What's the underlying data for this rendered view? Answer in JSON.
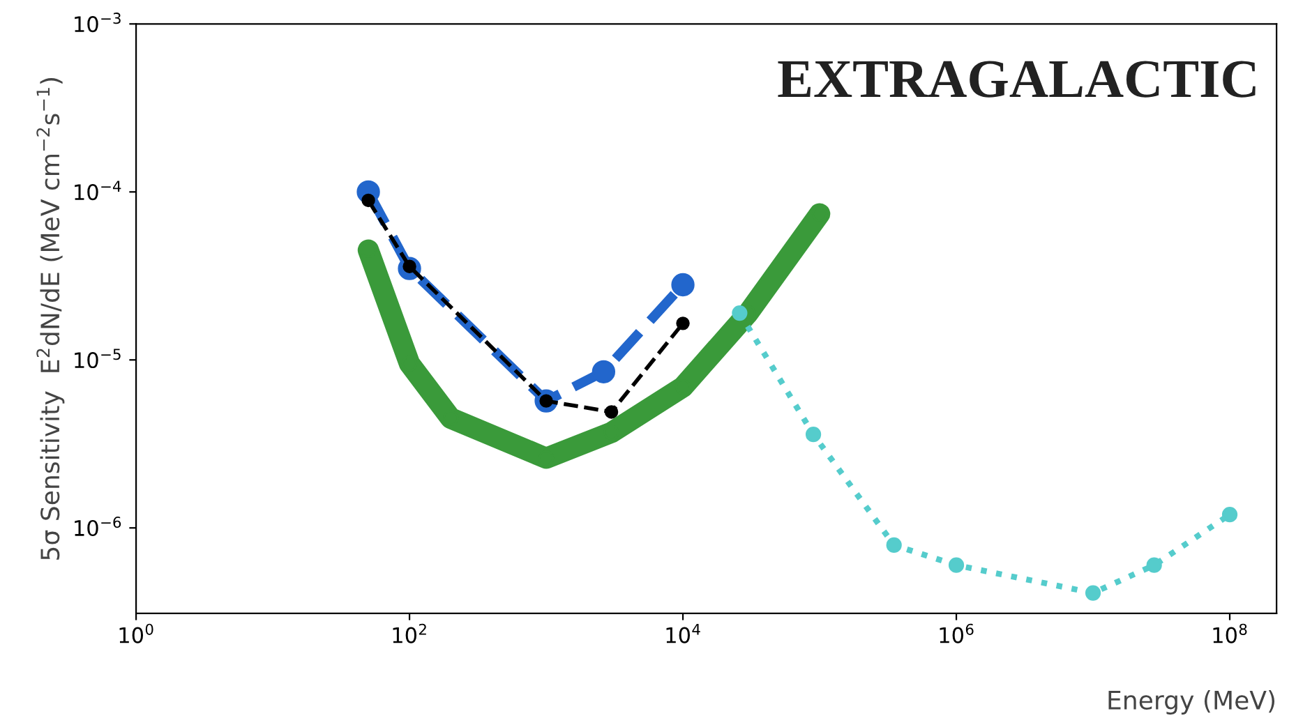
{
  "chart_data": {
    "type": "line",
    "annotations": [
      "EXTRAGALACTIC"
    ],
    "xlabel": "Energy (MeV)",
    "ylabel": "5σ Sensitivity  E$^{2}$dN/dE (MeV cm$^{−2}$s$^{−1}$)",
    "log": "xy",
    "xlim": [
      1,
      220000000
    ],
    "ylim": [
      3.1e-07,
      0.001
    ],
    "xticks": [
      {
        "value": 1,
        "label": "10$^{0}$"
      },
      {
        "value": 100,
        "label": "10$^{2}$"
      },
      {
        "value": 10000,
        "label": "10$^{4}$"
      },
      {
        "value": 1000000,
        "label": "10$^{6}$"
      },
      {
        "value": 100000000,
        "label": "10$^{8}$"
      }
    ],
    "yticks": [
      {
        "value": 1e-06,
        "label": "10$^{−6}$"
      },
      {
        "value": 1e-05,
        "label": "10$^{−5}$"
      },
      {
        "value": 0.0001,
        "label": "10$^{−4}$"
      },
      {
        "value": 0.001,
        "label": "10$^{−3}$"
      }
    ],
    "grid": false,
    "marker": "circle",
    "series": [
      {
        "color": "#3a9a3a",
        "line_style": "solid",
        "x": [
          50,
          100,
          200,
          1000,
          3000,
          10000,
          30000,
          100000
        ],
        "values": [
          4.5e-05,
          9.5e-06,
          4.5e-06,
          2.6e-06,
          3.7e-06,
          6.9e-06,
          1.9e-05,
          7.4e-05
        ]
      },
      {
        "color": "#2266cc",
        "line_style": "dashed",
        "x": [
          50,
          100,
          1000,
          2630,
          10000
        ],
        "values": [
          0.0001,
          3.5e-05,
          5.7e-06,
          8.5e-06,
          2.8e-05
        ]
      },
      {
        "color": "#000000",
        "line_style": "dashed",
        "x": [
          50,
          100,
          1000,
          3000,
          10000
        ],
        "values": [
          8.9e-05,
          3.6e-05,
          5.7e-06,
          4.9e-06,
          1.65e-05
        ]
      },
      {
        "color": "#55cccc",
        "line_style": "dotted",
        "x": [
          26000,
          90000,
          350000,
          1000000,
          10000000,
          28000000,
          100000000
        ],
        "values": [
          1.9e-05,
          3.6e-06,
          7.9e-07,
          6e-07,
          4.1e-07,
          6e-07,
          1.2e-06
        ]
      }
    ]
  }
}
